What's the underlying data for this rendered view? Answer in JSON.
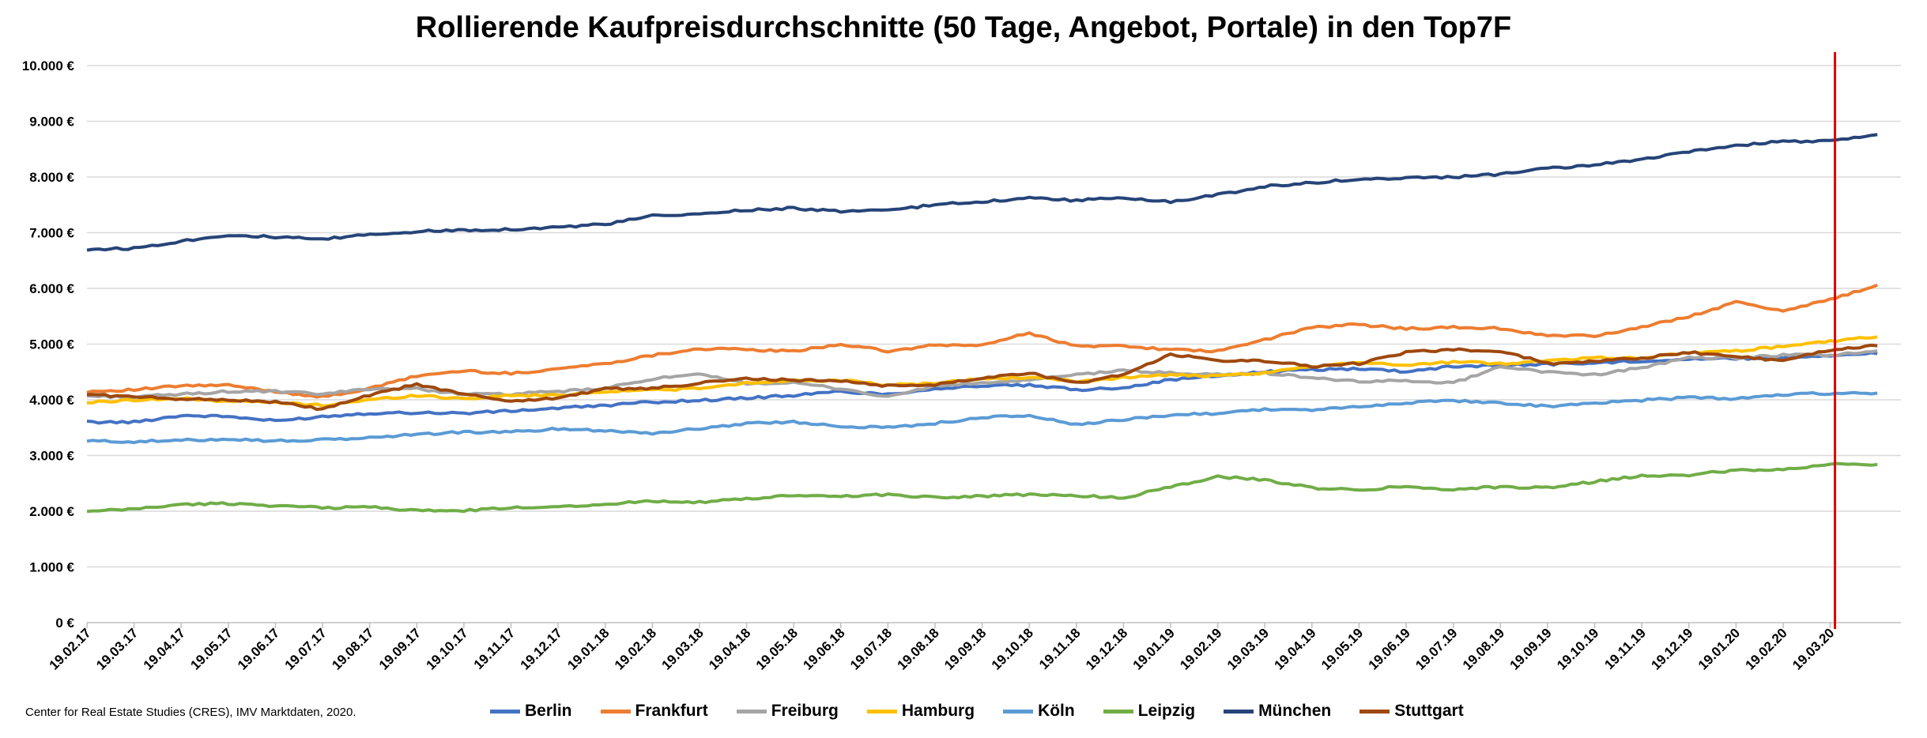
{
  "title": "Rollierende Kaufpreisdurchschnitte (50 Tage, Angebot, Portale) in den Top7F",
  "source": "Center for Real Estate Studies (CRES), IMV Marktdaten, 2020.",
  "chart_data": {
    "type": "line",
    "title": "Rollierende Kaufpreisdurchschnitte (50 Tage, Angebot, Portale) in den Top7F",
    "ylim": [
      0,
      10000
    ],
    "y_ticks": [
      "0 €",
      "1.000 €",
      "2.000 €",
      "3.000 €",
      "4.000 €",
      "5.000 €",
      "6.000 €",
      "7.000 €",
      "8.000 €",
      "9.000 €",
      "10.000 €"
    ],
    "x_tick_labels": [
      "19.02.17",
      "19.03.17",
      "19.04.17",
      "19.05.17",
      "19.06.17",
      "19.07.17",
      "19.08.17",
      "19.09.17",
      "19.10.17",
      "19.11.17",
      "19.12.17",
      "19.01.18",
      "19.02.18",
      "19.03.18",
      "19.04.18",
      "19.05.18",
      "19.06.18",
      "19.07.18",
      "19.08.18",
      "19.09.18",
      "19.10.18",
      "19.11.18",
      "19.12.18",
      "19.01.19",
      "19.02.19",
      "19.03.19",
      "19.04.19",
      "19.05.19",
      "19.06.19",
      "19.07.19",
      "19.08.19",
      "19.09.19",
      "19.10.19",
      "19.11.19",
      "19.12.19",
      "19.01.20",
      "19.02.20",
      "19.03.20"
    ],
    "x_end_index": 38.5,
    "vline_index": 37.1,
    "vline_color": "#e00000",
    "grid": true,
    "legend_position": "bottom",
    "series": [
      {
        "name": "Berlin",
        "color": "#4472c4",
        "values": [
          3600,
          3600,
          3720,
          3700,
          3620,
          3700,
          3760,
          3770,
          3760,
          3800,
          3850,
          3900,
          3960,
          3990,
          4030,
          4080,
          4150,
          4100,
          4200,
          4250,
          4260,
          4180,
          4220,
          4360,
          4430,
          4500,
          4540,
          4560,
          4510,
          4600,
          4620,
          4640,
          4660,
          4700,
          4730,
          4740,
          4760,
          4800,
          4830
        ]
      },
      {
        "name": "Frankfurt",
        "color": "#ed7d31",
        "values": [
          4150,
          4180,
          4250,
          4260,
          4150,
          4050,
          4200,
          4430,
          4520,
          4470,
          4560,
          4650,
          4800,
          4920,
          4900,
          4870,
          5000,
          4870,
          4980,
          4980,
          5200,
          4960,
          4970,
          4900,
          4870,
          5080,
          5300,
          5350,
          5280,
          5300,
          5280,
          5150,
          5150,
          5300,
          5500,
          5750,
          5600,
          5800,
          6060
        ]
      },
      {
        "name": "Freiburg",
        "color": "#a5a5a5",
        "values": [
          4070,
          4050,
          4100,
          4150,
          4150,
          4100,
          4200,
          4200,
          4100,
          4100,
          4150,
          4200,
          4380,
          4450,
          4300,
          4300,
          4200,
          4050,
          4250,
          4300,
          4350,
          4450,
          4530,
          4480,
          4450,
          4480,
          4400,
          4320,
          4350,
          4300,
          4600,
          4500,
          4450,
          4580,
          4750,
          4750,
          4800,
          4800,
          4880
        ]
      },
      {
        "name": "Hamburg",
        "color": "#ffc000",
        "values": [
          3950,
          4000,
          4020,
          3980,
          3950,
          3900,
          4000,
          4080,
          4020,
          4080,
          4080,
          4150,
          4180,
          4200,
          4300,
          4350,
          4350,
          4260,
          4300,
          4380,
          4400,
          4330,
          4400,
          4450,
          4420,
          4480,
          4600,
          4680,
          4620,
          4680,
          4650,
          4700,
          4760,
          4750,
          4850,
          4880,
          4960,
          5050,
          5130
        ]
      },
      {
        "name": "Köln",
        "color": "#5b9bd5",
        "values": [
          3260,
          3250,
          3270,
          3300,
          3260,
          3280,
          3320,
          3380,
          3420,
          3420,
          3480,
          3450,
          3400,
          3480,
          3580,
          3600,
          3530,
          3500,
          3580,
          3680,
          3720,
          3550,
          3640,
          3730,
          3760,
          3830,
          3820,
          3870,
          3950,
          3980,
          3950,
          3880,
          3940,
          3990,
          4040,
          4020,
          4090,
          4120,
          4120
        ]
      },
      {
        "name": "Leipzig",
        "color": "#70ad47",
        "values": [
          1990,
          2040,
          2120,
          2140,
          2100,
          2060,
          2080,
          2010,
          2010,
          2060,
          2090,
          2120,
          2190,
          2160,
          2220,
          2280,
          2270,
          2300,
          2250,
          2270,
          2300,
          2280,
          2240,
          2440,
          2620,
          2560,
          2420,
          2380,
          2450,
          2390,
          2440,
          2420,
          2530,
          2640,
          2650,
          2740,
          2750,
          2850,
          2840
        ]
      },
      {
        "name": "München",
        "color": "#264478",
        "values": [
          6700,
          6720,
          6850,
          6960,
          6920,
          6880,
          6970,
          7020,
          7050,
          7060,
          7100,
          7150,
          7300,
          7330,
          7410,
          7440,
          7380,
          7400,
          7500,
          7560,
          7620,
          7580,
          7630,
          7550,
          7680,
          7830,
          7900,
          7960,
          7980,
          8000,
          8050,
          8150,
          8220,
          8310,
          8450,
          8560,
          8640,
          8650,
          8760
        ]
      },
      {
        "name": "Stuttgart",
        "color": "#9e480e",
        "values": [
          4100,
          4050,
          4020,
          4000,
          3960,
          3830,
          4080,
          4280,
          4100,
          3980,
          4030,
          4200,
          4200,
          4300,
          4380,
          4350,
          4340,
          4250,
          4270,
          4400,
          4480,
          4300,
          4450,
          4820,
          4700,
          4700,
          4600,
          4650,
          4850,
          4900,
          4880,
          4650,
          4700,
          4750,
          4850,
          4780,
          4700,
          4900,
          4970
        ]
      }
    ]
  }
}
